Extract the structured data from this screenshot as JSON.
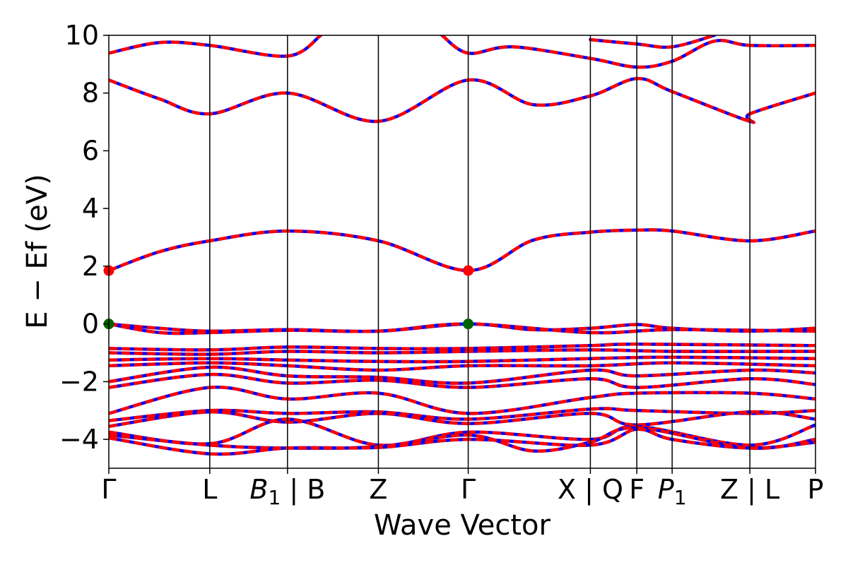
{
  "chart_data": {
    "type": "line",
    "xlabel": "Wave Vector",
    "ylabel": "E − Ef (eV)",
    "ylim": [
      -5,
      10
    ],
    "yticks": [
      -4,
      -2,
      0,
      2,
      4,
      6,
      8,
      10
    ],
    "ytick_labels": [
      "−4",
      "−2",
      "0",
      "2",
      "4",
      "6",
      "8",
      "10"
    ],
    "grid": false,
    "kpath": {
      "labels": [
        "Γ",
        "L",
        "B1 | B",
        "Z",
        "Γ",
        "X | Q",
        "F",
        "P1",
        "Z | L",
        "P"
      ],
      "positions": [
        0.0,
        1.0,
        1.77,
        2.67,
        3.56,
        4.77,
        5.23,
        5.58,
        6.35,
        7.0
      ]
    },
    "style": {
      "band_color_a": "#ff0000",
      "band_color_b": "#0000ff",
      "marker_cbm_color": "#ff0000",
      "marker_vbm_color": "#006400"
    },
    "markers": [
      {
        "x": 0.0,
        "y": 1.85,
        "kind": "cbm"
      },
      {
        "x": 3.56,
        "y": 1.85,
        "kind": "cbm"
      },
      {
        "x": 0.0,
        "y": 0.0,
        "kind": "vbm"
      },
      {
        "x": 3.56,
        "y": 0.0,
        "kind": "vbm"
      }
    ],
    "series": [
      {
        "values": [
          [
            0,
            1.85
          ],
          [
            0.5,
            2.5
          ],
          [
            1.0,
            2.88
          ],
          [
            1.77,
            3.22
          ],
          [
            2.67,
            2.88
          ],
          [
            3.56,
            1.85
          ],
          [
            4.2,
            2.9
          ],
          [
            4.77,
            3.18
          ],
          [
            5.23,
            3.25
          ],
          [
            5.58,
            3.22
          ],
          [
            6.35,
            2.88
          ],
          [
            7.0,
            3.22
          ]
        ]
      },
      {
        "values": [
          [
            0,
            8.45
          ],
          [
            0.5,
            7.8
          ],
          [
            1.0,
            7.28
          ],
          [
            1.77,
            8.0
          ],
          [
            2.67,
            7.02
          ],
          [
            3.56,
            8.45
          ],
          [
            4.2,
            7.6
          ],
          [
            4.77,
            7.9
          ],
          [
            5.23,
            8.5
          ],
          [
            5.58,
            8.05
          ],
          [
            6.35,
            7.02
          ],
          [
            6.35,
            7.28
          ],
          [
            7.0,
            8.0
          ]
        ]
      },
      {
        "values": [
          [
            0,
            9.38
          ],
          [
            0.5,
            9.75
          ],
          [
            1.0,
            9.65
          ],
          [
            1.77,
            9.28
          ],
          [
            2.1,
            10.0
          ]
        ]
      },
      {
        "values": [
          [
            3.3,
            10.0
          ],
          [
            3.56,
            9.38
          ],
          [
            4.0,
            9.6
          ],
          [
            4.77,
            9.2
          ],
          [
            5.23,
            8.9
          ],
          [
            5.58,
            9.1
          ],
          [
            6.0,
            9.8
          ],
          [
            6.35,
            9.65
          ],
          [
            7.0,
            9.65
          ]
        ]
      },
      {
        "values": [
          [
            4.77,
            9.85
          ],
          [
            5.23,
            9.7
          ],
          [
            5.58,
            9.6
          ],
          [
            6.0,
            10.0
          ]
        ]
      },
      {
        "values": [
          [
            0,
            0.0
          ],
          [
            0.5,
            -0.15
          ],
          [
            1.0,
            -0.25
          ],
          [
            1.77,
            -0.2
          ],
          [
            2.67,
            -0.25
          ],
          [
            3.56,
            0.0
          ],
          [
            4.2,
            -0.2
          ],
          [
            4.77,
            -0.15
          ],
          [
            5.23,
            -0.02
          ],
          [
            5.58,
            -0.15
          ],
          [
            6.35,
            -0.25
          ],
          [
            7.0,
            -0.15
          ]
        ]
      },
      {
        "values": [
          [
            0,
            0.0
          ],
          [
            0.5,
            -0.3
          ],
          [
            1.0,
            -0.3
          ],
          [
            1.77,
            -0.22
          ],
          [
            2.67,
            -0.25
          ],
          [
            3.56,
            0.0
          ],
          [
            4.77,
            -0.3
          ],
          [
            5.58,
            -0.2
          ],
          [
            7.0,
            -0.25
          ]
        ]
      },
      {
        "values": [
          [
            0,
            -0.85
          ],
          [
            1.0,
            -0.9
          ],
          [
            1.77,
            -0.8
          ],
          [
            2.67,
            -0.85
          ],
          [
            3.56,
            -0.85
          ],
          [
            4.77,
            -0.75
          ],
          [
            5.23,
            -0.7
          ],
          [
            7.0,
            -0.75
          ]
        ]
      },
      {
        "values": [
          [
            0,
            -1.0
          ],
          [
            1.0,
            -1.05
          ],
          [
            1.77,
            -0.95
          ],
          [
            2.67,
            -1.0
          ],
          [
            3.56,
            -0.95
          ],
          [
            4.77,
            -0.9
          ],
          [
            5.58,
            -0.95
          ],
          [
            7.0,
            -0.95
          ]
        ]
      },
      {
        "values": [
          [
            0,
            -1.25
          ],
          [
            1.0,
            -1.2
          ],
          [
            1.77,
            -1.25
          ],
          [
            2.67,
            -1.3
          ],
          [
            3.56,
            -1.3
          ],
          [
            4.77,
            -1.2
          ],
          [
            5.58,
            -1.15
          ],
          [
            7.0,
            -1.2
          ]
        ]
      },
      {
        "values": [
          [
            0,
            -1.45
          ],
          [
            1.0,
            -1.35
          ],
          [
            1.77,
            -1.45
          ],
          [
            2.67,
            -1.6
          ],
          [
            3.56,
            -1.45
          ],
          [
            4.77,
            -1.45
          ],
          [
            5.58,
            -1.35
          ],
          [
            7.0,
            -1.45
          ]
        ]
      },
      {
        "values": [
          [
            0,
            -2.0
          ],
          [
            1.0,
            -1.5
          ],
          [
            1.77,
            -1.8
          ],
          [
            2.67,
            -1.85
          ],
          [
            3.56,
            -2.05
          ],
          [
            4.77,
            -1.6
          ],
          [
            5.23,
            -1.8
          ],
          [
            6.35,
            -1.6
          ],
          [
            7.0,
            -1.7
          ]
        ]
      },
      {
        "values": [
          [
            0,
            -2.2
          ],
          [
            1.0,
            -1.75
          ],
          [
            1.77,
            -2.05
          ],
          [
            2.67,
            -1.95
          ],
          [
            3.56,
            -2.2
          ],
          [
            4.77,
            -1.9
          ],
          [
            5.23,
            -2.2
          ],
          [
            6.35,
            -1.9
          ],
          [
            7.0,
            -2.1
          ]
        ]
      },
      {
        "values": [
          [
            0,
            -3.1
          ],
          [
            1.0,
            -2.2
          ],
          [
            1.77,
            -2.6
          ],
          [
            2.67,
            -2.4
          ],
          [
            3.56,
            -3.1
          ],
          [
            4.77,
            -2.55
          ],
          [
            5.23,
            -2.4
          ],
          [
            6.35,
            -2.4
          ],
          [
            7.0,
            -2.6
          ]
        ]
      },
      {
        "values": [
          [
            0,
            -3.35
          ],
          [
            1.0,
            -3.0
          ],
          [
            1.77,
            -3.1
          ],
          [
            2.67,
            -3.05
          ],
          [
            3.56,
            -3.3
          ],
          [
            4.77,
            -2.95
          ],
          [
            5.23,
            -3.0
          ],
          [
            6.35,
            -3.1
          ],
          [
            7.0,
            -3.0
          ]
        ]
      },
      {
        "values": [
          [
            0,
            -3.55
          ],
          [
            1.0,
            -3.05
          ],
          [
            1.77,
            -3.4
          ],
          [
            2.67,
            -3.1
          ],
          [
            3.56,
            -3.45
          ],
          [
            4.77,
            -3.1
          ],
          [
            5.23,
            -3.5
          ],
          [
            6.35,
            -3.05
          ],
          [
            7.0,
            -3.3
          ]
        ]
      },
      {
        "values": [
          [
            0,
            -3.75
          ],
          [
            1.0,
            -4.15
          ],
          [
            1.77,
            -3.3
          ],
          [
            2.67,
            -4.2
          ],
          [
            3.56,
            -3.75
          ],
          [
            4.77,
            -4.0
          ],
          [
            5.23,
            -3.55
          ],
          [
            6.35,
            -4.2
          ],
          [
            7.0,
            -3.5
          ]
        ]
      },
      {
        "values": [
          [
            0,
            -3.85
          ],
          [
            1.0,
            -4.2
          ],
          [
            1.77,
            -4.3
          ],
          [
            2.67,
            -4.25
          ],
          [
            3.56,
            -3.85
          ],
          [
            4.2,
            -4.4
          ],
          [
            4.77,
            -4.1
          ],
          [
            5.23,
            -3.6
          ],
          [
            6.35,
            -4.3
          ],
          [
            7.0,
            -4.0
          ]
        ]
      },
      {
        "values": [
          [
            0,
            -3.95
          ],
          [
            1.0,
            -4.5
          ],
          [
            1.77,
            -4.3
          ],
          [
            2.67,
            -4.28
          ],
          [
            3.56,
            -4.0
          ],
          [
            4.77,
            -4.2
          ],
          [
            5.23,
            -3.65
          ],
          [
            5.58,
            -4.0
          ],
          [
            6.35,
            -4.3
          ],
          [
            7.0,
            -4.1
          ]
        ]
      }
    ]
  }
}
